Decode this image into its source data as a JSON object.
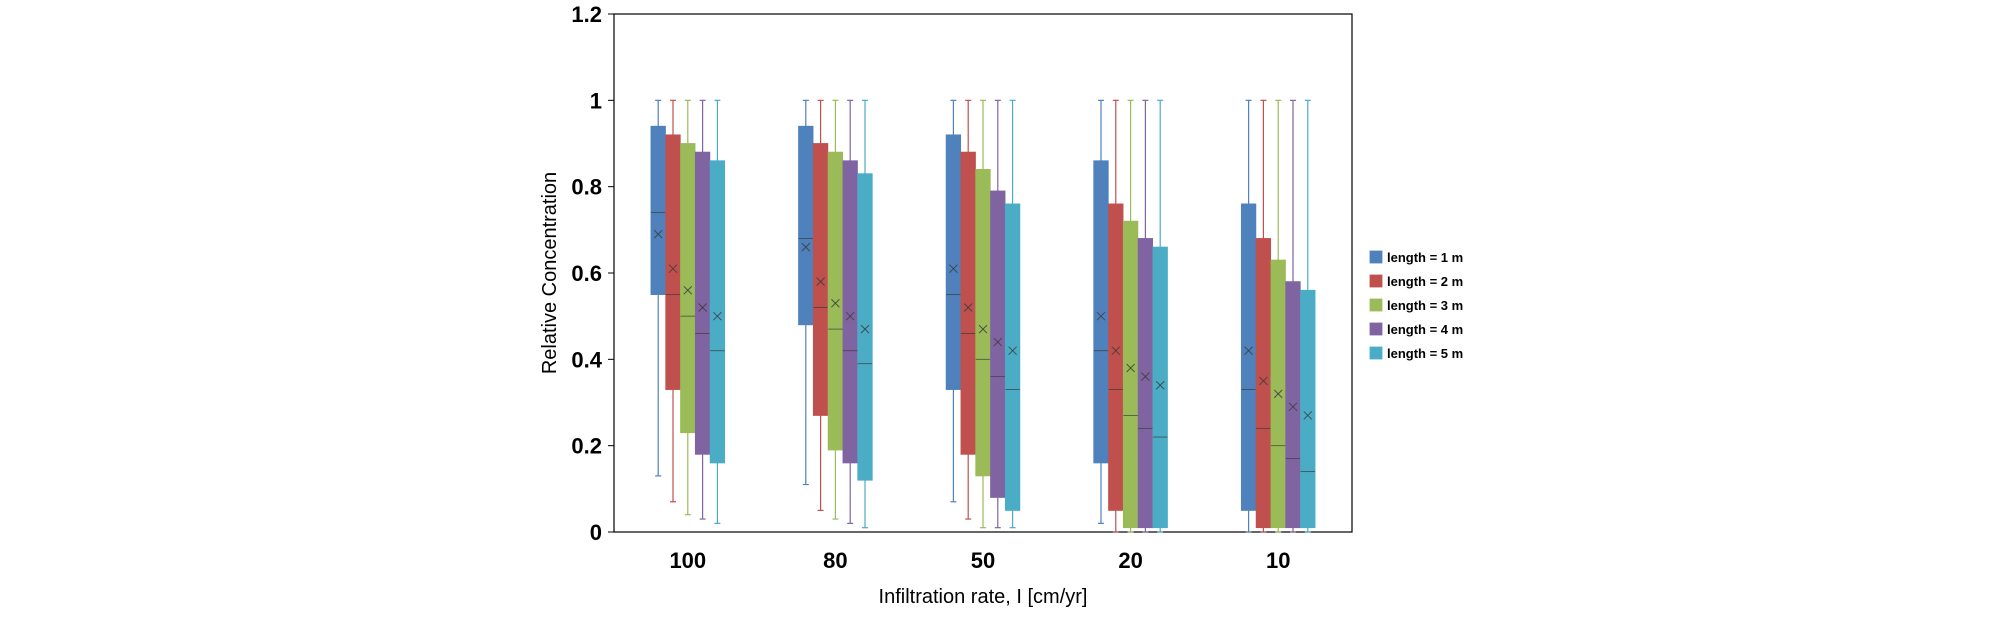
{
  "chart_data": {
    "type": "box",
    "xlabel": "Infiltration rate, I [cm/yr]",
    "ylabel": "Relative Concentration",
    "ylim": [
      0,
      1.2
    ],
    "yticks": [
      0,
      0.2,
      0.4,
      0.6,
      0.8,
      1,
      1.2
    ],
    "ytick_labels": [
      "0",
      "0.2",
      "0.4",
      "0.6",
      "0.8",
      "1",
      "1.2"
    ],
    "categories": [
      "100",
      "80",
      "50",
      "20",
      "10"
    ],
    "grid": false,
    "legend_position": "right",
    "series": [
      {
        "name": "length = 1 m",
        "color": "#4f81bd",
        "boxes": [
          {
            "min": 0.13,
            "q1": 0.55,
            "median": 0.74,
            "mean": 0.69,
            "q3": 0.94,
            "max": 1.0
          },
          {
            "min": 0.11,
            "q1": 0.48,
            "median": 0.68,
            "mean": 0.66,
            "q3": 0.94,
            "max": 1.0
          },
          {
            "min": 0.07,
            "q1": 0.33,
            "median": 0.55,
            "mean": 0.61,
            "q3": 0.92,
            "max": 1.0
          },
          {
            "min": 0.02,
            "q1": 0.16,
            "median": 0.42,
            "mean": 0.5,
            "q3": 0.86,
            "max": 1.0
          },
          {
            "min": 0.0,
            "q1": 0.05,
            "median": 0.33,
            "mean": 0.42,
            "q3": 0.76,
            "max": 1.0
          }
        ]
      },
      {
        "name": "length = 2 m",
        "color": "#c0504d",
        "boxes": [
          {
            "min": 0.07,
            "q1": 0.33,
            "median": 0.55,
            "mean": 0.61,
            "q3": 0.92,
            "max": 1.0
          },
          {
            "min": 0.05,
            "q1": 0.27,
            "median": 0.52,
            "mean": 0.58,
            "q3": 0.9,
            "max": 1.0
          },
          {
            "min": 0.03,
            "q1": 0.18,
            "median": 0.46,
            "mean": 0.52,
            "q3": 0.88,
            "max": 1.0
          },
          {
            "min": 0.0,
            "q1": 0.05,
            "median": 0.33,
            "mean": 0.42,
            "q3": 0.76,
            "max": 1.0
          },
          {
            "min": 0.0,
            "q1": 0.01,
            "median": 0.24,
            "mean": 0.35,
            "q3": 0.68,
            "max": 1.0
          }
        ]
      },
      {
        "name": "length = 3 m",
        "color": "#9bbb59",
        "boxes": [
          {
            "min": 0.04,
            "q1": 0.23,
            "median": 0.5,
            "mean": 0.56,
            "q3": 0.9,
            "max": 1.0
          },
          {
            "min": 0.03,
            "q1": 0.19,
            "median": 0.47,
            "mean": 0.53,
            "q3": 0.88,
            "max": 1.0
          },
          {
            "min": 0.01,
            "q1": 0.13,
            "median": 0.4,
            "mean": 0.47,
            "q3": 0.84,
            "max": 1.0
          },
          {
            "min": 0.0,
            "q1": 0.01,
            "median": 0.27,
            "mean": 0.38,
            "q3": 0.72,
            "max": 1.0
          },
          {
            "min": 0.0,
            "q1": 0.01,
            "median": 0.2,
            "mean": 0.32,
            "q3": 0.63,
            "max": 1.0
          }
        ]
      },
      {
        "name": "length = 4 m",
        "color": "#8064a2",
        "boxes": [
          {
            "min": 0.03,
            "q1": 0.18,
            "median": 0.46,
            "mean": 0.52,
            "q3": 0.88,
            "max": 1.0
          },
          {
            "min": 0.02,
            "q1": 0.16,
            "median": 0.42,
            "mean": 0.5,
            "q3": 0.86,
            "max": 1.0
          },
          {
            "min": 0.01,
            "q1": 0.08,
            "median": 0.36,
            "mean": 0.44,
            "q3": 0.79,
            "max": 1.0
          },
          {
            "min": 0.0,
            "q1": 0.01,
            "median": 0.24,
            "mean": 0.36,
            "q3": 0.68,
            "max": 1.0
          },
          {
            "min": 0.0,
            "q1": 0.01,
            "median": 0.17,
            "mean": 0.29,
            "q3": 0.58,
            "max": 1.0
          }
        ]
      },
      {
        "name": "length = 5 m",
        "color": "#4bacc6",
        "boxes": [
          {
            "min": 0.02,
            "q1": 0.16,
            "median": 0.42,
            "mean": 0.5,
            "q3": 0.86,
            "max": 1.0
          },
          {
            "min": 0.01,
            "q1": 0.12,
            "median": 0.39,
            "mean": 0.47,
            "q3": 0.83,
            "max": 1.0
          },
          {
            "min": 0.01,
            "q1": 0.05,
            "median": 0.33,
            "mean": 0.42,
            "q3": 0.76,
            "max": 1.0
          },
          {
            "min": 0.0,
            "q1": 0.01,
            "median": 0.22,
            "mean": 0.34,
            "q3": 0.66,
            "max": 1.0
          },
          {
            "min": 0.0,
            "q1": 0.01,
            "median": 0.14,
            "mean": 0.27,
            "q3": 0.56,
            "max": 1.0
          }
        ]
      }
    ]
  }
}
